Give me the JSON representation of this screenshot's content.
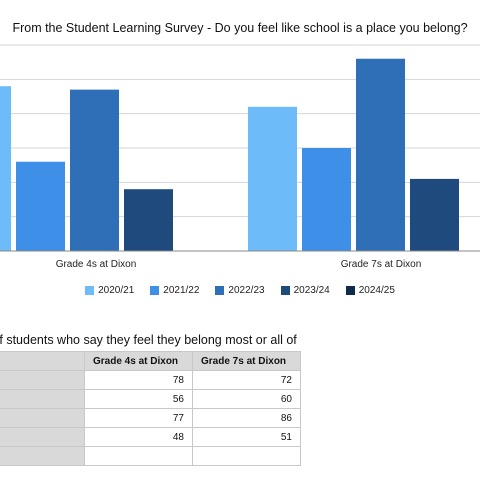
{
  "chart_data": {
    "type": "bar",
    "title": "From the Student Learning Survey - Do you feel like school is a place you belong?",
    "categories": [
      "Grade 4s at Dixon",
      "Grade 7s at Dixon"
    ],
    "series": [
      {
        "name": "2020/21",
        "values": [
          78,
          72
        ],
        "color": "#6dbcf9"
      },
      {
        "name": "2021/22",
        "values": [
          56,
          60
        ],
        "color": "#3d8fe8"
      },
      {
        "name": "2022/23",
        "values": [
          77,
          86
        ],
        "color": "#2e6fb8"
      },
      {
        "name": "2023/24",
        "values": [
          48,
          51
        ],
        "color": "#1e4a7e"
      },
      {
        "name": "2024/25",
        "values": [
          null,
          null
        ],
        "color": "#102a4c"
      }
    ],
    "ylim": [
      30,
      90
    ],
    "grid": true,
    "legend": "bottom"
  },
  "table": {
    "caption": "e of students who say they feel they belong most or all of",
    "headers": [
      "",
      "Grade 4s at Dixon",
      "Grade 7s at Dixon"
    ],
    "rows": [
      [
        "",
        "78",
        "72"
      ],
      [
        "",
        "56",
        "60"
      ],
      [
        "",
        "77",
        "86"
      ],
      [
        "",
        "48",
        "51"
      ],
      [
        "",
        "",
        ""
      ]
    ]
  }
}
